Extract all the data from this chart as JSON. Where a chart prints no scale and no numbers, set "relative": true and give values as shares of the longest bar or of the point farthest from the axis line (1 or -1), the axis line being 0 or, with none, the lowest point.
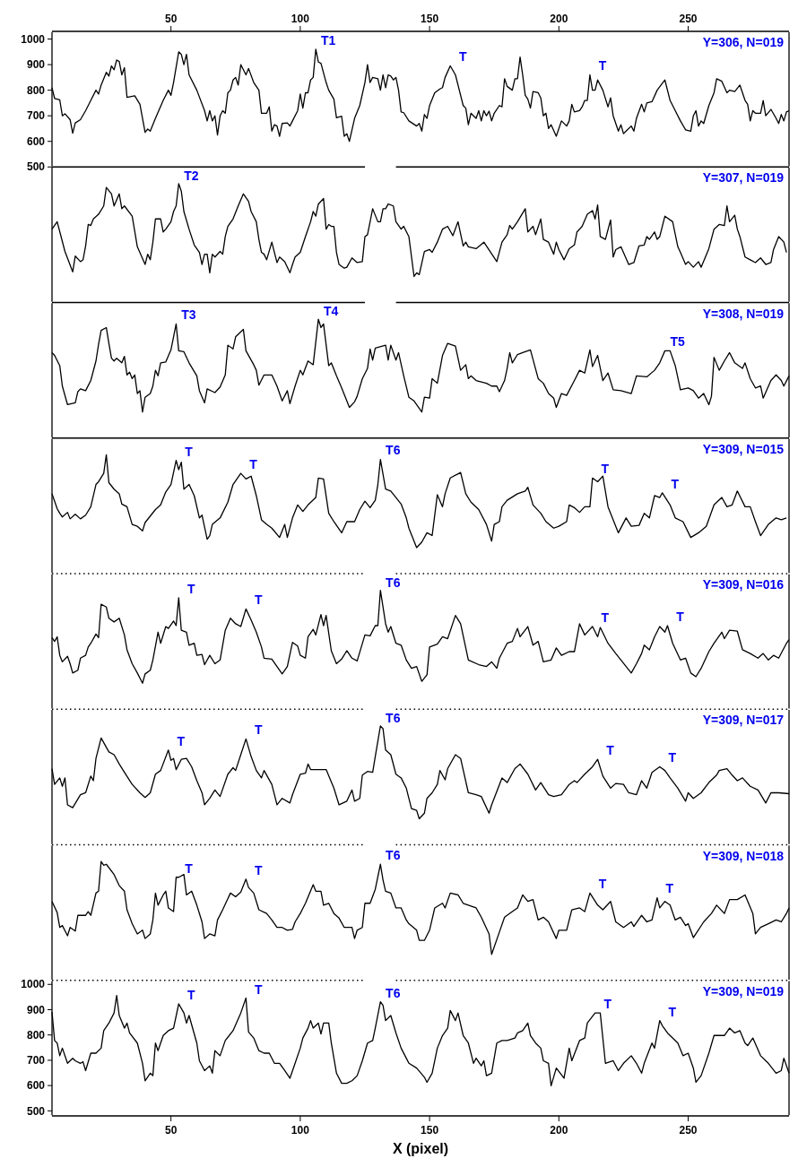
{
  "chart_data": [
    {
      "type": "line",
      "color": "#000000",
      "xlim": [
        4,
        289
      ],
      "ylim": [
        500,
        1030
      ],
      "yticks": [
        500,
        600,
        700,
        800,
        900,
        1000
      ],
      "x2lim": [
        4,
        289
      ],
      "x2ticks": [
        50,
        100,
        150,
        200,
        250
      ],
      "tick_labels": "y",
      "annotations": [
        "Y=306, N=019",
        {
          "text": "T1",
          "x": 106,
          "y": 960
        },
        {
          "text": "T",
          "x": 158,
          "y": 895
        },
        {
          "text": "T",
          "x": 212,
          "y": 860
        }
      ],
      "x": [
        4,
        5,
        7,
        8,
        9,
        11,
        12,
        13,
        15,
        17,
        19,
        21,
        22,
        23,
        25,
        26,
        27,
        28,
        29,
        30,
        31,
        32,
        33,
        36,
        38,
        40,
        41,
        42,
        44,
        47,
        49,
        50,
        51,
        53,
        54,
        55,
        56,
        57,
        60,
        63,
        64,
        65,
        66,
        67,
        68,
        69,
        70,
        71,
        72,
        73,
        74,
        75,
        76,
        77,
        78,
        79,
        80,
        82,
        84,
        85,
        87,
        88,
        89,
        90,
        91,
        92,
        93,
        95,
        96,
        97,
        99,
        100,
        101,
        102,
        103,
        104,
        105,
        106,
        107,
        108,
        110,
        111,
        113,
        114,
        116,
        117,
        118,
        119,
        121,
        123,
        125,
        126,
        127,
        128,
        130,
        131,
        132,
        133,
        134,
        135,
        136,
        137,
        138,
        139,
        140,
        142,
        145,
        146,
        147,
        148,
        149,
        150,
        152,
        154,
        155,
        156,
        158,
        160,
        161,
        163,
        164,
        165,
        166,
        167,
        168,
        169,
        170,
        171,
        172,
        173,
        174,
        175,
        177,
        178,
        179,
        180,
        182,
        183,
        184,
        185,
        186,
        187,
        188,
        189,
        190,
        192,
        193,
        194,
        195,
        196,
        197,
        199,
        201,
        203,
        204,
        205,
        206,
        208,
        209,
        210,
        211,
        212,
        213,
        214,
        215,
        217,
        219,
        220,
        221,
        223,
        224,
        225,
        226,
        228,
        229,
        230,
        232,
        233,
        234,
        236,
        238,
        241,
        243,
        245,
        247,
        249,
        251,
        252,
        253,
        254,
        255,
        256,
        258,
        260,
        261,
        263,
        265,
        266,
        268,
        270,
        272,
        273,
        274,
        275,
        276,
        278,
        279,
        280,
        282,
        284,
        285,
        286,
        287,
        288,
        289
      ],
      "values": [
        810,
        768,
        762,
        700,
        708,
        685,
        632,
        672,
        685,
        720,
        760,
        800,
        785,
        820,
        870,
        855,
        895,
        880,
        918,
        912,
        860,
        888,
        772,
        778,
        745,
        635,
        648,
        640,
        690,
        760,
        800,
        780,
        830,
        950,
        940,
        900,
        940,
        860,
        800,
        720,
        680,
        720,
        680,
        700,
        625,
        700,
        720,
        710,
        790,
        800,
        840,
        850,
        820,
        900,
        880,
        860,
        885,
        830,
        800,
        710,
        710,
        735,
        640,
        665,
        660,
        620,
        670,
        672,
        660,
        680,
        720,
        785,
        730,
        790,
        790,
        840,
        850,
        960,
        910,
        905,
        830,
        800,
        765,
        692,
        698,
        620,
        630,
        600,
        690,
        740,
        830,
        900,
        830,
        850,
        845,
        800,
        860,
        810,
        860,
        855,
        840,
        850,
        800,
        715,
        712,
        680,
        660,
        670,
        640,
        705,
        690,
        740,
        790,
        805,
        810,
        850,
        895,
        860,
        820,
        740,
        730,
        665,
        710,
        700,
        690,
        720,
        680,
        720,
        700,
        718,
        680,
        710,
        740,
        735,
        845,
        815,
        800,
        845,
        845,
        930,
        860,
        780,
        765,
        730,
        795,
        790,
        770,
        700,
        710,
        650,
        665,
        620,
        680,
        660,
        680,
        745,
        715,
        720,
        735,
        760,
        760,
        860,
        800,
        800,
        840,
        800,
        735,
        770,
        700,
        640,
        665,
        630,
        640,
        660,
        640,
        690,
        745,
        715,
        750,
        755,
        800,
        840,
        760,
        720,
        680,
        645,
        640,
        700,
        720,
        660,
        680,
        670,
        740,
        790,
        845,
        835,
        790,
        800,
        795,
        820,
        760,
        745,
        680,
        720,
        710,
        710,
        760,
        700,
        725,
        690,
        670,
        705,
        680,
        715,
        720
      ]
    },
    {
      "type": "line",
      "color": "#000000",
      "xlim": [
        4,
        289
      ],
      "relative": true,
      "tick_labels": false,
      "annotations": [
        "Y=307, N=019",
        {
          "text": "T2",
          "x": 53,
          "y": 1
        }
      ],
      "x": [
        4,
        6,
        9,
        12,
        13,
        15,
        16,
        17,
        18,
        19,
        20,
        22,
        24,
        25,
        27,
        28,
        30,
        31,
        32,
        35,
        37,
        40,
        41,
        42,
        43,
        44,
        46,
        47,
        48,
        50,
        51,
        52,
        53,
        54,
        55,
        57,
        59,
        61,
        62,
        63,
        64,
        65,
        66,
        67,
        69,
        70,
        71,
        72,
        74,
        76,
        78,
        80,
        81,
        83,
        84,
        85,
        86,
        87,
        89,
        90,
        91,
        92,
        94,
        96,
        97,
        98,
        100,
        102,
        104,
        105,
        106,
        107,
        109,
        110,
        111,
        112,
        113,
        114,
        115,
        117,
        118,
        120,
        122,
        124,
        125,
        126,
        128,
        130,
        131,
        132,
        133,
        134,
        136,
        137,
        139,
        140,
        142,
        144,
        145,
        146,
        148,
        150,
        151,
        153,
        155,
        157,
        158,
        159,
        161,
        163,
        164,
        165,
        168,
        171,
        176,
        178,
        180,
        181,
        182,
        184,
        187,
        188,
        190,
        191,
        193,
        194,
        196,
        198,
        199,
        200,
        202,
        204,
        206,
        207,
        209,
        211,
        213,
        214,
        215,
        216,
        218,
        220,
        221,
        222,
        224,
        227,
        229,
        231,
        233,
        234,
        235,
        237,
        238,
        239,
        241,
        244,
        246,
        247,
        249,
        250,
        252,
        254,
        255,
        258,
        260,
        262,
        264,
        265,
        266,
        268,
        269,
        270,
        272,
        274,
        276,
        278,
        280,
        282,
        283,
        285,
        287,
        288
      ],
      "values": [
        0.51,
        0.59,
        0.27,
        0.05,
        0.22,
        0.16,
        0.18,
        0.33,
        0.56,
        0.55,
        0.62,
        0.67,
        0.76,
        0.96,
        0.89,
        0.76,
        0.89,
        0.73,
        0.76,
        0.65,
        0.32,
        0.13,
        0.24,
        0.18,
        0.37,
        0.62,
        0.62,
        0.48,
        0.51,
        0.59,
        0.7,
        0.76,
        1,
        0.92,
        0.7,
        0.51,
        0.34,
        0.26,
        0.13,
        0.24,
        0.24,
        0.04,
        0.24,
        0.21,
        0.27,
        0.24,
        0.43,
        0.54,
        0.62,
        0.76,
        0.89,
        0.81,
        0.7,
        0.59,
        0.4,
        0.26,
        0.24,
        0.18,
        0.37,
        0.26,
        0.15,
        0.21,
        0.16,
        0.04,
        0.13,
        0.21,
        0.26,
        0.43,
        0.59,
        0.7,
        0.65,
        0.78,
        0.84,
        0.51,
        0.56,
        0.54,
        0.54,
        0.26,
        0.13,
        0.09,
        0.1,
        0.2,
        0.15,
        0.16,
        0.43,
        0.45,
        0.73,
        0.59,
        0.59,
        0.73,
        0.73,
        0.78,
        0.76,
        0.59,
        0.51,
        0.54,
        0.43,
        0,
        0.04,
        0.02,
        0.27,
        0.29,
        0.26,
        0.37,
        0.51,
        0.54,
        0.49,
        0.44,
        0.59,
        0.33,
        0.37,
        0.32,
        0.3,
        0.37,
        0.16,
        0.37,
        0.45,
        0.55,
        0.51,
        0.59,
        0.73,
        0.48,
        0.54,
        0.45,
        0.62,
        0.4,
        0.37,
        0.24,
        0.37,
        0.29,
        0.18,
        0.3,
        0.34,
        0.48,
        0.54,
        0.67,
        0.71,
        0.62,
        0.77,
        0.43,
        0.4,
        0.61,
        0.21,
        0.29,
        0.32,
        0.13,
        0.15,
        0.33,
        0.34,
        0.43,
        0.4,
        0.48,
        0.4,
        0.43,
        0.65,
        0.59,
        0.32,
        0.26,
        0.13,
        0.16,
        0.1,
        0.16,
        0.1,
        0.3,
        0.51,
        0.56,
        0.55,
        0.76,
        0.59,
        0.66,
        0.51,
        0.43,
        0.21,
        0.18,
        0.15,
        0.2,
        0.13,
        0.15,
        0.29,
        0.43,
        0.37,
        0.26
      ]
    },
    {
      "type": "line",
      "color": "#000000",
      "xlim": [
        4,
        289
      ],
      "relative": true,
      "tick_labels": false,
      "annotations": [
        "Y=308, N=019",
        {
          "text": "T3",
          "x": 52,
          "y": 0.95
        },
        {
          "text": "T4",
          "x": 107,
          "y": 1
        },
        {
          "text": "T5",
          "x": 241,
          "y": 0.66
        }
      ],
      "x": [
        4,
        5,
        7,
        8,
        10,
        13,
        14,
        15,
        17,
        19,
        21,
        22,
        23,
        25,
        26,
        27,
        28,
        29,
        31,
        32,
        33,
        34,
        35,
        36,
        37,
        38,
        39,
        40,
        42,
        43,
        44,
        45,
        46,
        48,
        50,
        52,
        53,
        55,
        57,
        60,
        61,
        63,
        64,
        67,
        69,
        71,
        72,
        74,
        75,
        78,
        79,
        82,
        83,
        84,
        86,
        89,
        91,
        93,
        95,
        96,
        98,
        100,
        101,
        103,
        105,
        107,
        108,
        109,
        111,
        112,
        114,
        116,
        119,
        121,
        122,
        124,
        126,
        127,
        128,
        129,
        133,
        134,
        135,
        137,
        138,
        140,
        142,
        144,
        147,
        148,
        150,
        151,
        153,
        155,
        157,
        160,
        162,
        164,
        165,
        166,
        168,
        172,
        174,
        176,
        177,
        179,
        180,
        181,
        182,
        184,
        186,
        189,
        192,
        194,
        196,
        198,
        199,
        201,
        203,
        206,
        208,
        210,
        212,
        213,
        215,
        217,
        219,
        221,
        224,
        228,
        230,
        234,
        237,
        239,
        241,
        243,
        245,
        247,
        250,
        252,
        254,
        256,
        258,
        259,
        260,
        262,
        264,
        266,
        268,
        271,
        272,
        274,
        276,
        278,
        279,
        282,
        284,
        286,
        287,
        289
      ],
      "values": [
        0.64,
        0.61,
        0.5,
        0.28,
        0.08,
        0.1,
        0.22,
        0.25,
        0.23,
        0.34,
        0.55,
        0.73,
        0.88,
        0.91,
        0.74,
        0.58,
        0.55,
        0.58,
        0.53,
        0.6,
        0.4,
        0.43,
        0.36,
        0.4,
        0.2,
        0.23,
        0,
        0.16,
        0.2,
        0.28,
        0.45,
        0.39,
        0.53,
        0.54,
        0.67,
        0.95,
        0.66,
        0.65,
        0.53,
        0.39,
        0.23,
        0.1,
        0.25,
        0.21,
        0.27,
        0.4,
        0.72,
        0.68,
        0.81,
        0.89,
        0.66,
        0.51,
        0.45,
        0.29,
        0.4,
        0.4,
        0.28,
        0.12,
        0.23,
        0.09,
        0.28,
        0.45,
        0.4,
        0.55,
        0.51,
        1,
        0.91,
        0.95,
        0.5,
        0.53,
        0.39,
        0.26,
        0.05,
        0.11,
        0.17,
        0.36,
        0.47,
        0.68,
        0.56,
        0.69,
        0.72,
        0.56,
        0.72,
        0.56,
        0.64,
        0.39,
        0.16,
        0.12,
        0,
        0.16,
        0.15,
        0.36,
        0.31,
        0.61,
        0.74,
        0.71,
        0.45,
        0.51,
        0.36,
        0.39,
        0.34,
        0.31,
        0.28,
        0.28,
        0.22,
        0.34,
        0.47,
        0.64,
        0.53,
        0.62,
        0.64,
        0.67,
        0.36,
        0.31,
        0.2,
        0.15,
        0.05,
        0.2,
        0.18,
        0.34,
        0.45,
        0.42,
        0.67,
        0.49,
        0.61,
        0.34,
        0.42,
        0.24,
        0.23,
        0.2,
        0.39,
        0.38,
        0.45,
        0.53,
        0.66,
        0.66,
        0.5,
        0.24,
        0.26,
        0.23,
        0.15,
        0.2,
        0.08,
        0.17,
        0.59,
        0.45,
        0.55,
        0.64,
        0.53,
        0.47,
        0.53,
        0.36,
        0.26,
        0.28,
        0.15,
        0.34,
        0.4,
        0.34,
        0.28,
        0.39
      ]
    },
    {
      "type": "line",
      "color": "#000000",
      "xlim": [
        4,
        289
      ],
      "relative": true,
      "tick_labels": false,
      "annotations": [
        "Y=309, N=015",
        {
          "text": "T",
          "x": 52,
          "y": 0.94
        },
        {
          "text": "T",
          "x": 77,
          "y": 0.8
        },
        {
          "text": "T6",
          "x": 131,
          "y": 0.95
        },
        {
          "text": "T",
          "x": 213,
          "y": 0.75
        },
        {
          "text": "T",
          "x": 240,
          "y": 0.59
        }
      ],
      "x": [
        4,
        6,
        7,
        8,
        10,
        11,
        13,
        15,
        17,
        19,
        21,
        22,
        24,
        25,
        26,
        28,
        30,
        31,
        33,
        35,
        37,
        39,
        40,
        42,
        44,
        46,
        48,
        50,
        52,
        53,
        54,
        55,
        57,
        59,
        61,
        62,
        64,
        65,
        66,
        69,
        72,
        74,
        77,
        79,
        81,
        83,
        85,
        87,
        89,
        92,
        94,
        95,
        97,
        99,
        101,
        103,
        106,
        107,
        109,
        111,
        113,
        116,
        118,
        121,
        123,
        125,
        127,
        129,
        130,
        131,
        133,
        135,
        137,
        139,
        141,
        142,
        145,
        147,
        149,
        151,
        153,
        155,
        156,
        158,
        162,
        164,
        166,
        169,
        172,
        174,
        175,
        177,
        178,
        180,
        184,
        187,
        188,
        190,
        193,
        195,
        198,
        200,
        203,
        204,
        206,
        208,
        210,
        212,
        213,
        215,
        217,
        219,
        223,
        226,
        228,
        231,
        233,
        235,
        237,
        239,
        240,
        243,
        245,
        248,
        251,
        254,
        257,
        260,
        263,
        265,
        267,
        269,
        272,
        274,
        276,
        278,
        281,
        284,
        286,
        288
      ],
      "values": [
        0.58,
        0.42,
        0.37,
        0.33,
        0.38,
        0.31,
        0.36,
        0.31,
        0.35,
        0.44,
        0.68,
        0.71,
        0.8,
        1,
        0.7,
        0.63,
        0.58,
        0.47,
        0.44,
        0.25,
        0.23,
        0.18,
        0.27,
        0.34,
        0.41,
        0.46,
        0.6,
        0.68,
        0.94,
        0.84,
        0.92,
        0.63,
        0.68,
        0.56,
        0.32,
        0.35,
        0.09,
        0.13,
        0.25,
        0.32,
        0.49,
        0.68,
        0.8,
        0.74,
        0.77,
        0.56,
        0.3,
        0.25,
        0.21,
        0.11,
        0.25,
        0.11,
        0.32,
        0.46,
        0.39,
        0.46,
        0.54,
        0.75,
        0.74,
        0.37,
        0.28,
        0.16,
        0.28,
        0.28,
        0.41,
        0.5,
        0.43,
        0.51,
        0.68,
        0.95,
        0.63,
        0.61,
        0.54,
        0.47,
        0.32,
        0.21,
        0,
        0.06,
        0.16,
        0.13,
        0.57,
        0.44,
        0.58,
        0.75,
        0.81,
        0.58,
        0.49,
        0.41,
        0.25,
        0.07,
        0.25,
        0.28,
        0.44,
        0.51,
        0.58,
        0.61,
        0.65,
        0.46,
        0.37,
        0.28,
        0.21,
        0.23,
        0.28,
        0.46,
        0.43,
        0.38,
        0.44,
        0.44,
        0.75,
        0.71,
        0.77,
        0.44,
        0.16,
        0.32,
        0.23,
        0.24,
        0.37,
        0.32,
        0.56,
        0.54,
        0.59,
        0.46,
        0.32,
        0.28,
        0.11,
        0.16,
        0.23,
        0.46,
        0.54,
        0.44,
        0.46,
        0.61,
        0.44,
        0.44,
        0.28,
        0.13,
        0.25,
        0.32,
        0.3,
        0.32
      ]
    },
    {
      "type": "line",
      "color": "#000000",
      "xlim": [
        4,
        289
      ],
      "relative": true,
      "tick_labels": false,
      "annotations": [
        "Y=309, N=016",
        {
          "text": "T",
          "x": 53,
          "y": 0.92
        },
        {
          "text": "T",
          "x": 79,
          "y": 0.8
        },
        {
          "text": "T6",
          "x": 131,
          "y": 1
        },
        {
          "text": "T",
          "x": 213,
          "y": 0.61
        },
        {
          "text": "T",
          "x": 242,
          "y": 0.62
        }
      ],
      "x": [
        4,
        5,
        6,
        7,
        8,
        10,
        11,
        12,
        14,
        15,
        17,
        18,
        19,
        21,
        22,
        23,
        25,
        26,
        28,
        30,
        32,
        33,
        35,
        37,
        39,
        40,
        42,
        43,
        45,
        46,
        48,
        49,
        51,
        52,
        53,
        54,
        56,
        57,
        59,
        60,
        62,
        63,
        65,
        67,
        69,
        71,
        73,
        75,
        77,
        79,
        81,
        83,
        85,
        86,
        89,
        91,
        93,
        95,
        97,
        99,
        100,
        102,
        103,
        105,
        106,
        108,
        109,
        110,
        112,
        114,
        116,
        118,
        120,
        122,
        125,
        127,
        129,
        130,
        131,
        133,
        134,
        135,
        137,
        139,
        141,
        143,
        145,
        147,
        149,
        150,
        153,
        155,
        157,
        160,
        162,
        165,
        169,
        172,
        174,
        176,
        177,
        180,
        182,
        184,
        185,
        188,
        190,
        192,
        194,
        197,
        199,
        201,
        204,
        206,
        208,
        210,
        213,
        215,
        216,
        219,
        222,
        224,
        228,
        230,
        232,
        233,
        235,
        237,
        239,
        241,
        242,
        244,
        247,
        249,
        251,
        253,
        255,
        258,
        260,
        263,
        264,
        266,
        269,
        271,
        274,
        277,
        279,
        281,
        283,
        285,
        288,
        289
      ],
      "values": [
        0.49,
        0.45,
        0.5,
        0.3,
        0.23,
        0.29,
        0.21,
        0.11,
        0.14,
        0.27,
        0.3,
        0.39,
        0.43,
        0.53,
        0.49,
        0.85,
        0.82,
        0.7,
        0.66,
        0.7,
        0.52,
        0.36,
        0.21,
        0.11,
        0,
        0.1,
        0.14,
        0.25,
        0.55,
        0.43,
        0.61,
        0.59,
        0.67,
        0.62,
        0.92,
        0.57,
        0.55,
        0.41,
        0.43,
        0.3,
        0.31,
        0.2,
        0.3,
        0.21,
        0.25,
        0.57,
        0.7,
        0.64,
        0.61,
        0.8,
        0.68,
        0.55,
        0.39,
        0.27,
        0.26,
        0.18,
        0.1,
        0.18,
        0.44,
        0.4,
        0.3,
        0.27,
        0.5,
        0.58,
        0.52,
        0.74,
        0.62,
        0.73,
        0.35,
        0.21,
        0.26,
        0.35,
        0.27,
        0.24,
        0.52,
        0.51,
        0.62,
        0.62,
        1,
        0.64,
        0.55,
        0.61,
        0.43,
        0.41,
        0.25,
        0.16,
        0.18,
        0.02,
        0.09,
        0.39,
        0.42,
        0.5,
        0.48,
        0.73,
        0.64,
        0.25,
        0.2,
        0.18,
        0.23,
        0.16,
        0.27,
        0.43,
        0.45,
        0.59,
        0.5,
        0.61,
        0.41,
        0.45,
        0.23,
        0.25,
        0.38,
        0.3,
        0.34,
        0.34,
        0.64,
        0.52,
        0.61,
        0.5,
        0.6,
        0.43,
        0.32,
        0.25,
        0.11,
        0.21,
        0.32,
        0.41,
        0.36,
        0.5,
        0.61,
        0.55,
        0.62,
        0.43,
        0.25,
        0.27,
        0.11,
        0.07,
        0.16,
        0.34,
        0.43,
        0.55,
        0.48,
        0.57,
        0.56,
        0.36,
        0.32,
        0.27,
        0.32,
        0.25,
        0.3,
        0.27,
        0.43,
        0.47
      ]
    },
    {
      "type": "line",
      "color": "#000000",
      "xlim": [
        4,
        289
      ],
      "relative": true,
      "tick_labels": false,
      "annotations": [
        "Y=309, N=017",
        {
          "text": "T",
          "x": 49,
          "y": 0.74
        },
        {
          "text": "T",
          "x": 79,
          "y": 0.86
        },
        {
          "text": "T6",
          "x": 131,
          "y": 1
        },
        {
          "text": "T",
          "x": 215,
          "y": 0.64
        },
        {
          "text": "T",
          "x": 239,
          "y": 0.56
        }
      ],
      "x": [
        4,
        5,
        7,
        8,
        9,
        10,
        12,
        15,
        17,
        19,
        20,
        21,
        23,
        26,
        28,
        30,
        32,
        35,
        38,
        40,
        42,
        44,
        46,
        49,
        50,
        51,
        52,
        54,
        56,
        58,
        60,
        62,
        63,
        65,
        67,
        69,
        72,
        74,
        75,
        77,
        79,
        81,
        83,
        85,
        86,
        89,
        91,
        93,
        96,
        97,
        100,
        102,
        103,
        104,
        110,
        113,
        115,
        118,
        120,
        121,
        123,
        124,
        126,
        128,
        129,
        131,
        132,
        133,
        135,
        137,
        139,
        141,
        143,
        145,
        146,
        148,
        149,
        151,
        153,
        154,
        156,
        157,
        160,
        162,
        165,
        168,
        170,
        173,
        174,
        178,
        180,
        183,
        185,
        188,
        191,
        193,
        196,
        198,
        201,
        204,
        206,
        207,
        210,
        213,
        215,
        217,
        220,
        222,
        225,
        227,
        230,
        232,
        234,
        236,
        239,
        241,
        243,
        246,
        249,
        250,
        252,
        255,
        258,
        261,
        262,
        265,
        267,
        269,
        271,
        274,
        277,
        280,
        282,
        285,
        289
      ],
      "values": [
        0.54,
        0.37,
        0.44,
        0.35,
        0.44,
        0.15,
        0.12,
        0.26,
        0.28,
        0.46,
        0.41,
        0.65,
        0.87,
        0.72,
        0.69,
        0.59,
        0.5,
        0.37,
        0.28,
        0.23,
        0.28,
        0.48,
        0.52,
        0.74,
        0.63,
        0.65,
        0.53,
        0.64,
        0.65,
        0.56,
        0.41,
        0.28,
        0.15,
        0.22,
        0.31,
        0.24,
        0.48,
        0.55,
        0.52,
        0.69,
        0.86,
        0.67,
        0.52,
        0.44,
        0.52,
        0.37,
        0.15,
        0.22,
        0.17,
        0.26,
        0.48,
        0.49,
        0.59,
        0.53,
        0.53,
        0.33,
        0.15,
        0.19,
        0.31,
        0.19,
        0.22,
        0.47,
        0.51,
        0.5,
        0.67,
        1,
        0.97,
        0.74,
        0.69,
        0.48,
        0.44,
        0.33,
        0.11,
        0.09,
        0,
        0.06,
        0.22,
        0.28,
        0.37,
        0.52,
        0.42,
        0.54,
        0.69,
        0.65,
        0.28,
        0.26,
        0.24,
        0.06,
        0.15,
        0.44,
        0.39,
        0.54,
        0.59,
        0.48,
        0.31,
        0.39,
        0.26,
        0.24,
        0.26,
        0.37,
        0.41,
        0.39,
        0.48,
        0.56,
        0.64,
        0.46,
        0.33,
        0.38,
        0.37,
        0.28,
        0.26,
        0.41,
        0.33,
        0.5,
        0.56,
        0.52,
        0.44,
        0.33,
        0.19,
        0.28,
        0.22,
        0.28,
        0.39,
        0.47,
        0.52,
        0.54,
        0.47,
        0.41,
        0.44,
        0.35,
        0.31,
        0.17,
        0.28,
        0.28,
        0.27
      ]
    },
    {
      "type": "line",
      "color": "#000000",
      "xlim": [
        4,
        289
      ],
      "relative": true,
      "tick_labels": false,
      "annotations": [
        "Y=309, N=018",
        {
          "text": "T",
          "x": 52,
          "y": 0.83
        },
        {
          "text": "T",
          "x": 79,
          "y": 0.81
        },
        {
          "text": "T6",
          "x": 131,
          "y": 0.97
        },
        {
          "text": "T",
          "x": 212,
          "y": 0.66
        },
        {
          "text": "T",
          "x": 238,
          "y": 0.61
        }
      ],
      "x": [
        4,
        6,
        7,
        8,
        10,
        11,
        13,
        14,
        17,
        18,
        19,
        21,
        22,
        23,
        24,
        25,
        28,
        30,
        32,
        33,
        35,
        37,
        39,
        40,
        42,
        43,
        44,
        45,
        47,
        48,
        49,
        51,
        52,
        53,
        55,
        56,
        58,
        60,
        62,
        63,
        65,
        67,
        68,
        70,
        73,
        75,
        77,
        79,
        80,
        82,
        84,
        87,
        89,
        91,
        93,
        95,
        97,
        98,
        100,
        102,
        105,
        106,
        108,
        109,
        111,
        113,
        115,
        117,
        118,
        120,
        121,
        122,
        124,
        125,
        127,
        129,
        131,
        132,
        133,
        135,
        137,
        139,
        141,
        142,
        145,
        146,
        148,
        150,
        152,
        155,
        156,
        158,
        161,
        163,
        166,
        168,
        170,
        173,
        174,
        177,
        179,
        182,
        184,
        186,
        188,
        190,
        192,
        194,
        196,
        199,
        200,
        203,
        205,
        208,
        210,
        212,
        215,
        217,
        220,
        222,
        225,
        228,
        229,
        232,
        234,
        236,
        238,
        239,
        241,
        243,
        245,
        247,
        249,
        250,
        252,
        256,
        259,
        261,
        264,
        266,
        269,
        272,
        275,
        276,
        278,
        281,
        284,
        286,
        288,
        289
      ],
      "values": [
        0.57,
        0.45,
        0.29,
        0.31,
        0.2,
        0.29,
        0.25,
        0.42,
        0.42,
        0.46,
        0.42,
        0.66,
        0.68,
        1,
        0.96,
        0.97,
        0.86,
        0.74,
        0.68,
        0.48,
        0.33,
        0.22,
        0.26,
        0.17,
        0.22,
        0.37,
        0.66,
        0.53,
        0.64,
        0.68,
        0.5,
        0.46,
        0.83,
        0.83,
        0.86,
        0.64,
        0.68,
        0.53,
        0.35,
        0.17,
        0.22,
        0.2,
        0.37,
        0.48,
        0.66,
        0.62,
        0.67,
        0.81,
        0.72,
        0.66,
        0.48,
        0.44,
        0.37,
        0.29,
        0.29,
        0.26,
        0.27,
        0.35,
        0.44,
        0.55,
        0.75,
        0.68,
        0.68,
        0.53,
        0.55,
        0.44,
        0.39,
        0.29,
        0.29,
        0.29,
        0.17,
        0.26,
        0.29,
        0.55,
        0.55,
        0.7,
        0.97,
        0.8,
        0.68,
        0.66,
        0.5,
        0.5,
        0.37,
        0.33,
        0.26,
        0.15,
        0.15,
        0.26,
        0.5,
        0.55,
        0.5,
        0.66,
        0.64,
        0.55,
        0.52,
        0.5,
        0.4,
        0.22,
        0,
        0.24,
        0.4,
        0.46,
        0.5,
        0.64,
        0.57,
        0.59,
        0.37,
        0.4,
        0.35,
        0.17,
        0.26,
        0.26,
        0.48,
        0.5,
        0.46,
        0.66,
        0.53,
        0.48,
        0.57,
        0.35,
        0.29,
        0.35,
        0.3,
        0.42,
        0.35,
        0.37,
        0.61,
        0.5,
        0.57,
        0.53,
        0.37,
        0.4,
        0.31,
        0.33,
        0.18,
        0.35,
        0.44,
        0.53,
        0.44,
        0.59,
        0.59,
        0.64,
        0.44,
        0.22,
        0.29,
        0.33,
        0.37,
        0.35,
        0.44,
        0.5
      ]
    },
    {
      "type": "line",
      "color": "#000000",
      "xlim": [
        4,
        289
      ],
      "ylim": [
        480,
        1016
      ],
      "yticks": [
        500,
        600,
        700,
        800,
        900,
        1000
      ],
      "xticks": [
        50,
        100,
        150,
        200,
        250
      ],
      "xlabel": "X (pixel)",
      "annotations": [
        "Y=309, N=019",
        {
          "text": "T",
          "x": 53,
          "y": 923
        },
        {
          "text": "T",
          "x": 79,
          "y": 946
        },
        {
          "text": "T6",
          "x": 131,
          "y": 931
        },
        {
          "text": "T",
          "x": 214,
          "y": 887
        },
        {
          "text": "T",
          "x": 239,
          "y": 857
        }
      ],
      "x": [
        4,
        5,
        6,
        7,
        8,
        10,
        12,
        13,
        15,
        16,
        17,
        19,
        21,
        23,
        24,
        26,
        28,
        29,
        30,
        32,
        33,
        34,
        37,
        39,
        40,
        42,
        43,
        44,
        45,
        47,
        49,
        51,
        53,
        55,
        56,
        57,
        60,
        61,
        63,
        65,
        66,
        67,
        69,
        71,
        74,
        77,
        79,
        80,
        82,
        84,
        86,
        88,
        90,
        92,
        94,
        96,
        98,
        100,
        101,
        103,
        104,
        105,
        107,
        108,
        109,
        111,
        112,
        114,
        116,
        118,
        120,
        122,
        124,
        126,
        128,
        129,
        131,
        132,
        133,
        135,
        137,
        139,
        141,
        142,
        145,
        148,
        149,
        151,
        153,
        155,
        157,
        158,
        160,
        161,
        163,
        165,
        167,
        168,
        170,
        171,
        172,
        174,
        176,
        178,
        180,
        183,
        184,
        186,
        188,
        189,
        191,
        193,
        194,
        196,
        197,
        199,
        202,
        204,
        205,
        208,
        210,
        211,
        214,
        216,
        218,
        221,
        223,
        225,
        228,
        230,
        232,
        233,
        236,
        237,
        239,
        240,
        242,
        246,
        248,
        250,
        252,
        253,
        255,
        258,
        260,
        264,
        266,
        268,
        270,
        272,
        273,
        275,
        278,
        281,
        284,
        286,
        287,
        289
      ],
      "values": [
        891,
        778,
        768,
        718,
        748,
        688,
        708,
        698,
        688,
        694,
        659,
        728,
        728,
        748,
        817,
        847,
        887,
        956,
        877,
        827,
        847,
        808,
        768,
        688,
        619,
        649,
        639,
        768,
        738,
        798,
        817,
        827,
        923,
        887,
        847,
        877,
        768,
        698,
        659,
        678,
        649,
        738,
        718,
        778,
        817,
        887,
        946,
        812,
        788,
        738,
        728,
        728,
        688,
        688,
        659,
        629,
        688,
        748,
        788,
        827,
        857,
        827,
        847,
        804,
        847,
        847,
        768,
        649,
        609,
        609,
        619,
        639,
        698,
        768,
        778,
        827,
        931,
        917,
        857,
        877,
        808,
        748,
        708,
        688,
        669,
        633,
        613,
        649,
        748,
        798,
        827,
        897,
        857,
        887,
        798,
        768,
        688,
        708,
        678,
        698,
        639,
        649,
        768,
        778,
        778,
        788,
        808,
        817,
        847,
        798,
        768,
        748,
        698,
        688,
        599,
        669,
        629,
        748,
        698,
        778,
        788,
        847,
        887,
        887,
        688,
        698,
        659,
        688,
        718,
        688,
        649,
        688,
        768,
        748,
        857,
        837,
        808,
        768,
        718,
        728,
        669,
        613,
        639,
        728,
        798,
        798,
        827,
        808,
        817,
        768,
        758,
        788,
        718,
        688,
        649,
        659,
        708,
        649
      ]
    }
  ]
}
